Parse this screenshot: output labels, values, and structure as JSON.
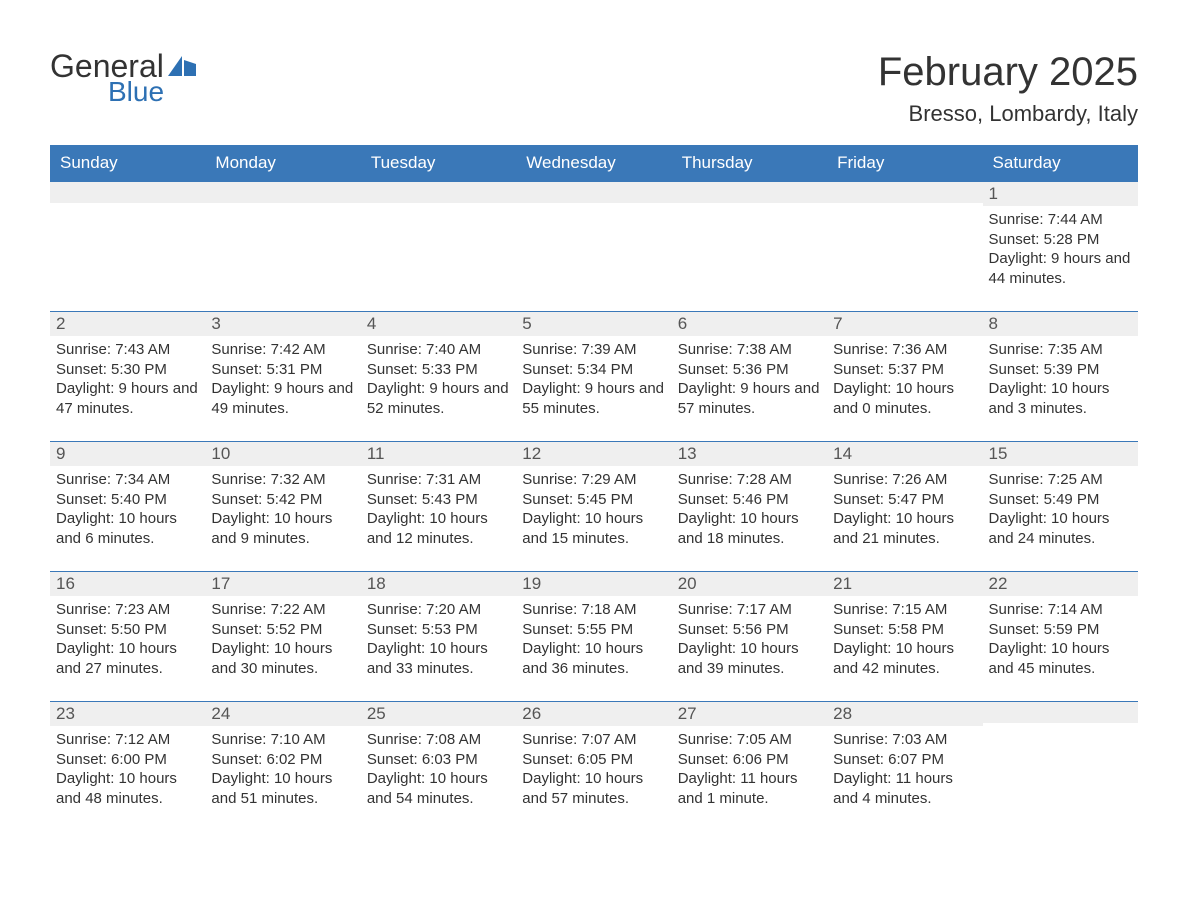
{
  "brand": {
    "word1": "General",
    "word2": "Blue"
  },
  "colors": {
    "header_bg": "#3a78b8",
    "header_text": "#ffffff",
    "daynum_bg": "#efefef",
    "daynum_border": "#3a78b8",
    "body_text": "#333333",
    "logo_blue": "#2d70b3",
    "page_bg": "#ffffff"
  },
  "title": "February 2025",
  "location": "Bresso, Lombardy, Italy",
  "weekdays": [
    "Sunday",
    "Monday",
    "Tuesday",
    "Wednesday",
    "Thursday",
    "Friday",
    "Saturday"
  ],
  "weeks": [
    [
      {
        "day": "",
        "sunrise": "",
        "sunset": "",
        "daylight": ""
      },
      {
        "day": "",
        "sunrise": "",
        "sunset": "",
        "daylight": ""
      },
      {
        "day": "",
        "sunrise": "",
        "sunset": "",
        "daylight": ""
      },
      {
        "day": "",
        "sunrise": "",
        "sunset": "",
        "daylight": ""
      },
      {
        "day": "",
        "sunrise": "",
        "sunset": "",
        "daylight": ""
      },
      {
        "day": "",
        "sunrise": "",
        "sunset": "",
        "daylight": ""
      },
      {
        "day": "1",
        "sunrise": "Sunrise: 7:44 AM",
        "sunset": "Sunset: 5:28 PM",
        "daylight": "Daylight: 9 hours and 44 minutes."
      }
    ],
    [
      {
        "day": "2",
        "sunrise": "Sunrise: 7:43 AM",
        "sunset": "Sunset: 5:30 PM",
        "daylight": "Daylight: 9 hours and 47 minutes."
      },
      {
        "day": "3",
        "sunrise": "Sunrise: 7:42 AM",
        "sunset": "Sunset: 5:31 PM",
        "daylight": "Daylight: 9 hours and 49 minutes."
      },
      {
        "day": "4",
        "sunrise": "Sunrise: 7:40 AM",
        "sunset": "Sunset: 5:33 PM",
        "daylight": "Daylight: 9 hours and 52 minutes."
      },
      {
        "day": "5",
        "sunrise": "Sunrise: 7:39 AM",
        "sunset": "Sunset: 5:34 PM",
        "daylight": "Daylight: 9 hours and 55 minutes."
      },
      {
        "day": "6",
        "sunrise": "Sunrise: 7:38 AM",
        "sunset": "Sunset: 5:36 PM",
        "daylight": "Daylight: 9 hours and 57 minutes."
      },
      {
        "day": "7",
        "sunrise": "Sunrise: 7:36 AM",
        "sunset": "Sunset: 5:37 PM",
        "daylight": "Daylight: 10 hours and 0 minutes."
      },
      {
        "day": "8",
        "sunrise": "Sunrise: 7:35 AM",
        "sunset": "Sunset: 5:39 PM",
        "daylight": "Daylight: 10 hours and 3 minutes."
      }
    ],
    [
      {
        "day": "9",
        "sunrise": "Sunrise: 7:34 AM",
        "sunset": "Sunset: 5:40 PM",
        "daylight": "Daylight: 10 hours and 6 minutes."
      },
      {
        "day": "10",
        "sunrise": "Sunrise: 7:32 AM",
        "sunset": "Sunset: 5:42 PM",
        "daylight": "Daylight: 10 hours and 9 minutes."
      },
      {
        "day": "11",
        "sunrise": "Sunrise: 7:31 AM",
        "sunset": "Sunset: 5:43 PM",
        "daylight": "Daylight: 10 hours and 12 minutes."
      },
      {
        "day": "12",
        "sunrise": "Sunrise: 7:29 AM",
        "sunset": "Sunset: 5:45 PM",
        "daylight": "Daylight: 10 hours and 15 minutes."
      },
      {
        "day": "13",
        "sunrise": "Sunrise: 7:28 AM",
        "sunset": "Sunset: 5:46 PM",
        "daylight": "Daylight: 10 hours and 18 minutes."
      },
      {
        "day": "14",
        "sunrise": "Sunrise: 7:26 AM",
        "sunset": "Sunset: 5:47 PM",
        "daylight": "Daylight: 10 hours and 21 minutes."
      },
      {
        "day": "15",
        "sunrise": "Sunrise: 7:25 AM",
        "sunset": "Sunset: 5:49 PM",
        "daylight": "Daylight: 10 hours and 24 minutes."
      }
    ],
    [
      {
        "day": "16",
        "sunrise": "Sunrise: 7:23 AM",
        "sunset": "Sunset: 5:50 PM",
        "daylight": "Daylight: 10 hours and 27 minutes."
      },
      {
        "day": "17",
        "sunrise": "Sunrise: 7:22 AM",
        "sunset": "Sunset: 5:52 PM",
        "daylight": "Daylight: 10 hours and 30 minutes."
      },
      {
        "day": "18",
        "sunrise": "Sunrise: 7:20 AM",
        "sunset": "Sunset: 5:53 PM",
        "daylight": "Daylight: 10 hours and 33 minutes."
      },
      {
        "day": "19",
        "sunrise": "Sunrise: 7:18 AM",
        "sunset": "Sunset: 5:55 PM",
        "daylight": "Daylight: 10 hours and 36 minutes."
      },
      {
        "day": "20",
        "sunrise": "Sunrise: 7:17 AM",
        "sunset": "Sunset: 5:56 PM",
        "daylight": "Daylight: 10 hours and 39 minutes."
      },
      {
        "day": "21",
        "sunrise": "Sunrise: 7:15 AM",
        "sunset": "Sunset: 5:58 PM",
        "daylight": "Daylight: 10 hours and 42 minutes."
      },
      {
        "day": "22",
        "sunrise": "Sunrise: 7:14 AM",
        "sunset": "Sunset: 5:59 PM",
        "daylight": "Daylight: 10 hours and 45 minutes."
      }
    ],
    [
      {
        "day": "23",
        "sunrise": "Sunrise: 7:12 AM",
        "sunset": "Sunset: 6:00 PM",
        "daylight": "Daylight: 10 hours and 48 minutes."
      },
      {
        "day": "24",
        "sunrise": "Sunrise: 7:10 AM",
        "sunset": "Sunset: 6:02 PM",
        "daylight": "Daylight: 10 hours and 51 minutes."
      },
      {
        "day": "25",
        "sunrise": "Sunrise: 7:08 AM",
        "sunset": "Sunset: 6:03 PM",
        "daylight": "Daylight: 10 hours and 54 minutes."
      },
      {
        "day": "26",
        "sunrise": "Sunrise: 7:07 AM",
        "sunset": "Sunset: 6:05 PM",
        "daylight": "Daylight: 10 hours and 57 minutes."
      },
      {
        "day": "27",
        "sunrise": "Sunrise: 7:05 AM",
        "sunset": "Sunset: 6:06 PM",
        "daylight": "Daylight: 11 hours and 1 minute."
      },
      {
        "day": "28",
        "sunrise": "Sunrise: 7:03 AM",
        "sunset": "Sunset: 6:07 PM",
        "daylight": "Daylight: 11 hours and 4 minutes."
      },
      {
        "day": "",
        "sunrise": "",
        "sunset": "",
        "daylight": ""
      }
    ]
  ]
}
